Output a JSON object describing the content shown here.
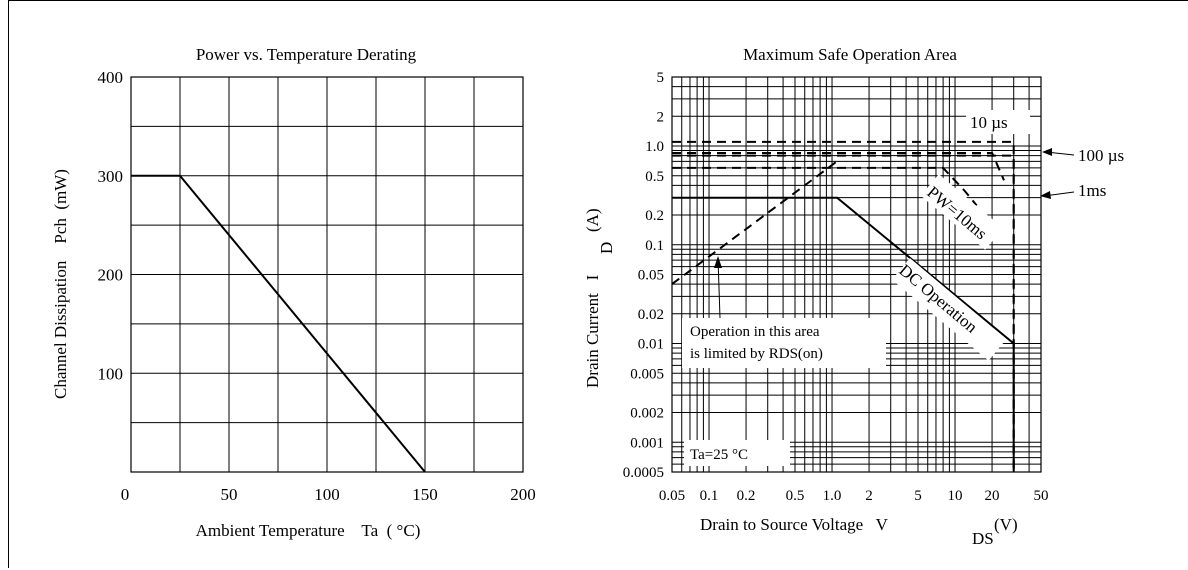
{
  "chart_data": [
    {
      "type": "line",
      "title": "Power vs. Temperature Derating",
      "xlabel": "Ambient Temperature    Ta  ( °C)",
      "ylabel": "Channel Dissipation    Pch  (mW)",
      "xlim": [
        0,
        200
      ],
      "ylim": [
        0,
        400
      ],
      "xticks": [
        0,
        50,
        100,
        150,
        200
      ],
      "yticks": [
        100,
        200,
        300,
        400
      ],
      "grid": true,
      "series": [
        {
          "x": [
            0,
            25,
            150
          ],
          "y": [
            300,
            300,
            0
          ]
        }
      ]
    },
    {
      "type": "line",
      "title": "Maximum Safe Operation Area",
      "xlabel": "Drain to Source Voltage   V",
      "xlabel_sub": "DS",
      "xlabel_unit": "(V)",
      "ylabel": "Drain Current   I",
      "ylabel_sub": "D",
      "ylabel_unit": "(A)",
      "xscale": "log",
      "yscale": "log",
      "xlim": [
        0.05,
        50
      ],
      "ylim": [
        0.0005,
        5
      ],
      "xticks": [
        "0.05",
        "0.1",
        "0.2",
        "0.5",
        "1.0",
        "2",
        "5",
        "10",
        "20",
        "50"
      ],
      "yticks": [
        "5",
        "2",
        "1.0",
        "0.5",
        "0.2",
        "0.1",
        "0.05",
        "0.02",
        "0.01",
        "0.005",
        "0.002",
        "0.001",
        "0.0005"
      ],
      "grid": true,
      "series": [
        {
          "name": "DC Operation",
          "style": "solid",
          "x": [
            0.05,
            1.1,
            30,
            30
          ],
          "y": [
            0.3,
            0.3,
            0.01,
            0.0005
          ]
        },
        {
          "name": "PW=10ms",
          "style": "dashed",
          "x": [
            0.05,
            8,
            12,
            15
          ],
          "y": [
            0.6,
            0.6,
            0.35,
            0.25
          ]
        },
        {
          "name": "1ms",
          "style": "dashed",
          "x": [
            0.05,
            20,
            25
          ],
          "y": [
            0.85,
            0.85,
            0.45
          ]
        },
        {
          "name": "100 µs",
          "style": "dashed",
          "x": [
            0.05,
            30,
            30,
            30
          ],
          "y": [
            0.8,
            0.8,
            0.8,
            0.0005
          ]
        },
        {
          "name": "10 µs",
          "style": "dashed",
          "x": [
            0.05,
            30,
            30
          ],
          "y": [
            1.1,
            1.1,
            0.0005
          ]
        },
        {
          "name": "RDS(on) limit",
          "style": "dashed",
          "x": [
            0.05,
            1.1
          ],
          "y": [
            0.04,
            0.7
          ]
        }
      ],
      "annotations": {
        "us10": "10 µs",
        "us100": "100 µs",
        "ms1": "1ms",
        "pw": "PW=10ms",
        "dc": "DC Operation",
        "area_line1": "Operation in this area",
        "area_line2": "is limited by RDS(on)",
        "ta": "Ta=25 °C"
      }
    }
  ]
}
